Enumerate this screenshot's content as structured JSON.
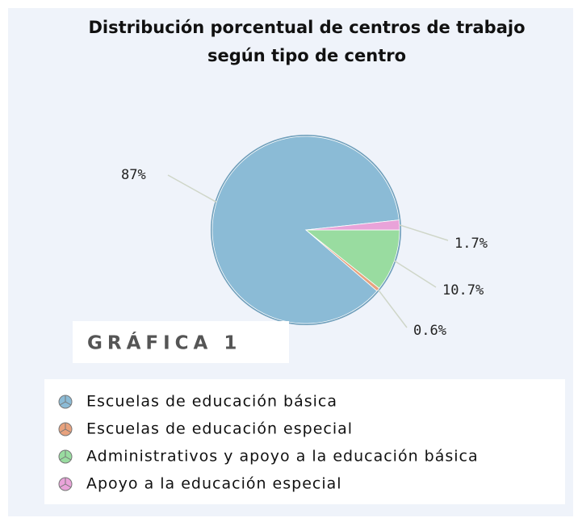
{
  "chart_data": {
    "type": "pie",
    "title": "Distribución porcentual de centros de trabajo",
    "subtitle": "según tipo de centro",
    "categories": [
      "Escuelas de educación básica",
      "Escuelas de educación especial",
      "Administrativos y apoyo a la educación básica",
      "Apoyo a la educación especial"
    ],
    "values": [
      87,
      0.6,
      10.7,
      1.7
    ],
    "value_labels": [
      "87%",
      "0.6%",
      "10.7%",
      "1.7%"
    ],
    "colors": [
      "#8bbbd6",
      "#e8a27e",
      "#99dca0",
      "#e9a3d9"
    ],
    "legend": "bottom"
  },
  "caption": "GRÁFICA 1"
}
